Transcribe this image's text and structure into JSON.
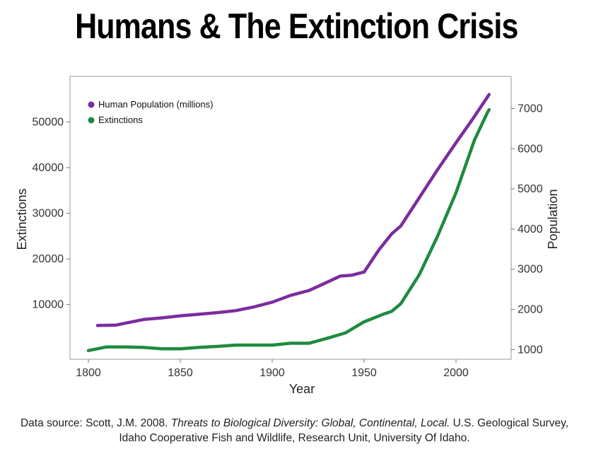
{
  "title": "Humans & The Extinction Crisis",
  "source": {
    "prefix": "Data source: Scott, J.M. 2008. ",
    "italic": "Threats to Biological Diversity: Global, Continental, Local.",
    "suffix": " U.S. Geological Survey,",
    "line2": "Idaho Cooperative Fish and Wildlife, Research Unit, University Of Idaho."
  },
  "chart_data": {
    "type": "line",
    "xlabel": "Year",
    "ylabel_left": "Extinctions",
    "ylabel_right": "Population",
    "xlim": [
      1790,
      2030
    ],
    "ylim_left": [
      -2000,
      60000
    ],
    "ylim_right": [
      760,
      7800
    ],
    "xticks": [
      1800,
      1850,
      1900,
      1950,
      2000
    ],
    "yticks_left": [
      10000,
      20000,
      30000,
      40000,
      50000
    ],
    "yticks_right": [
      1000,
      2000,
      3000,
      4000,
      5000,
      6000,
      7000
    ],
    "grid": false,
    "legend_position": "top-left",
    "series": [
      {
        "name": "Human Population (millions)",
        "axis": "right",
        "color": "#7B2D9E",
        "x": [
          1805,
          1815,
          1830,
          1840,
          1850,
          1860,
          1870,
          1880,
          1890,
          1900,
          1910,
          1920,
          1930,
          1937,
          1943,
          1950,
          1958,
          1965,
          1970,
          1980,
          1990,
          2000,
          2010,
          2018
        ],
        "values": [
          1600,
          1610,
          1750,
          1790,
          1840,
          1880,
          1920,
          1970,
          2060,
          2180,
          2350,
          2470,
          2680,
          2830,
          2850,
          2930,
          3480,
          3880,
          4080,
          4780,
          5480,
          6150,
          6800,
          7350
        ]
      },
      {
        "name": "Extinctions",
        "axis": "left",
        "color": "#1F8A3E",
        "x": [
          1800,
          1810,
          1820,
          1830,
          1840,
          1850,
          1860,
          1870,
          1880,
          1890,
          1900,
          1910,
          1920,
          1930,
          1940,
          1950,
          1960,
          1965,
          1970,
          1980,
          1990,
          2000,
          2010,
          2017,
          2018
        ],
        "values": [
          -100,
          700,
          700,
          600,
          300,
          300,
          600,
          800,
          1100,
          1100,
          1100,
          1500,
          1500,
          2600,
          3800,
          6200,
          7800,
          8500,
          10200,
          16500,
          25000,
          34500,
          46000,
          52000,
          52700
        ]
      }
    ]
  }
}
